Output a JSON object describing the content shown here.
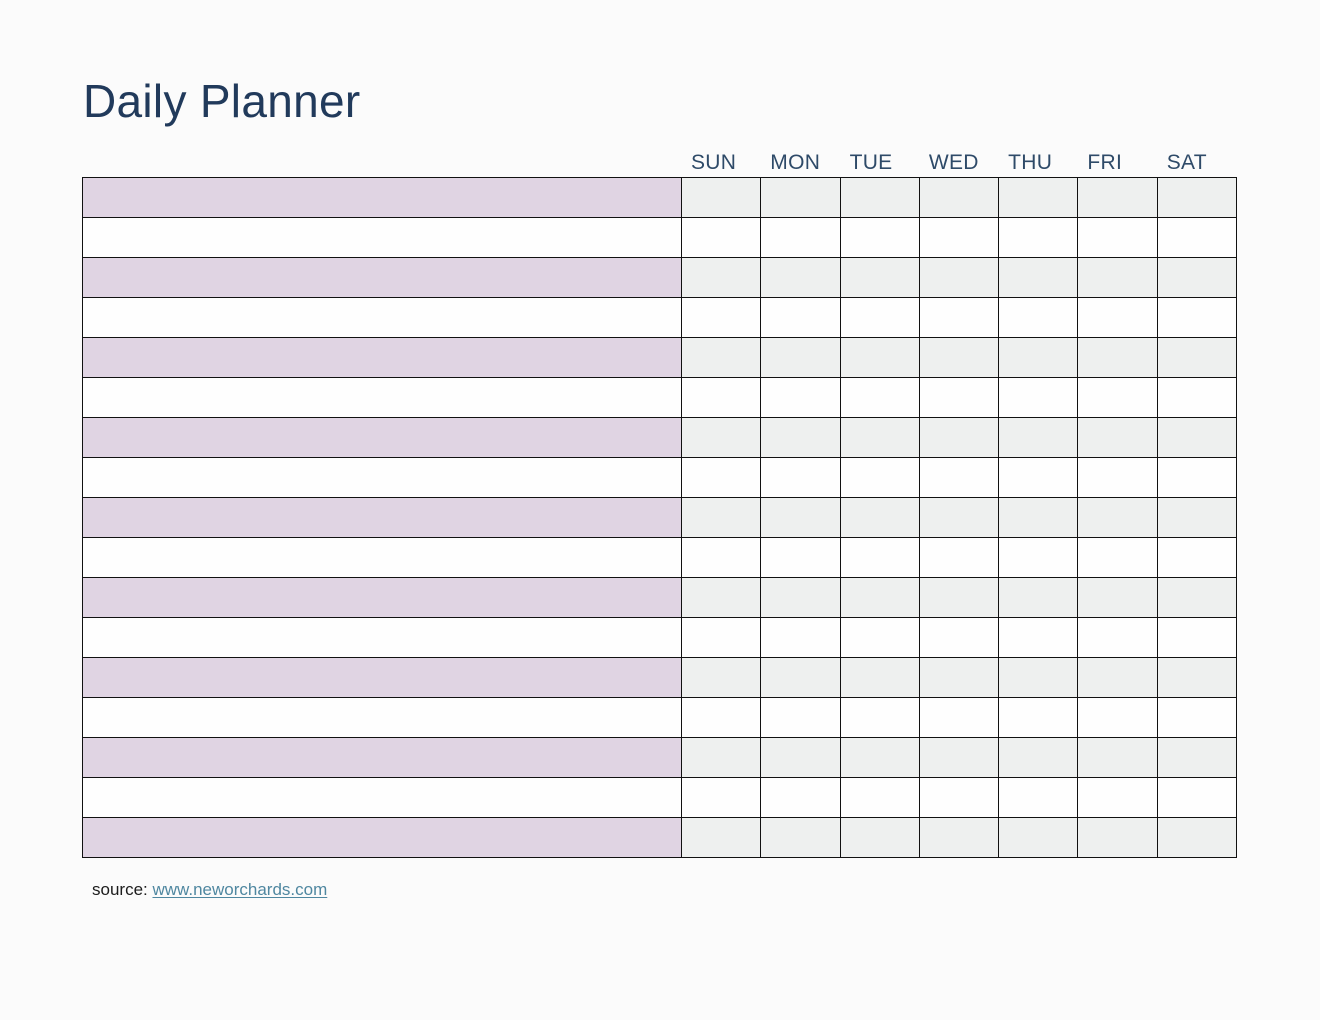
{
  "page": {
    "title": "Daily Planner",
    "footer": {
      "source_label": "source:",
      "source_link_text": "www.neworchards.com"
    }
  },
  "planner": {
    "day_headers": [
      "SUN",
      "MON",
      "TUE",
      "WED",
      "THU",
      "FRI",
      "SAT"
    ],
    "rows": 17,
    "first_row_shaded": true,
    "cells_empty": true
  },
  "colors": {
    "background": "#fbfbfb",
    "title_text": "#213a5b",
    "day_header_text": "#2e4a68",
    "task_shaded": "#e0d4e3",
    "day_shaded": "#eef0ef",
    "row_white": "#fefefe",
    "table_border": "#111111",
    "link": "#4f87a0",
    "footer_text": "#1c1c1c"
  }
}
